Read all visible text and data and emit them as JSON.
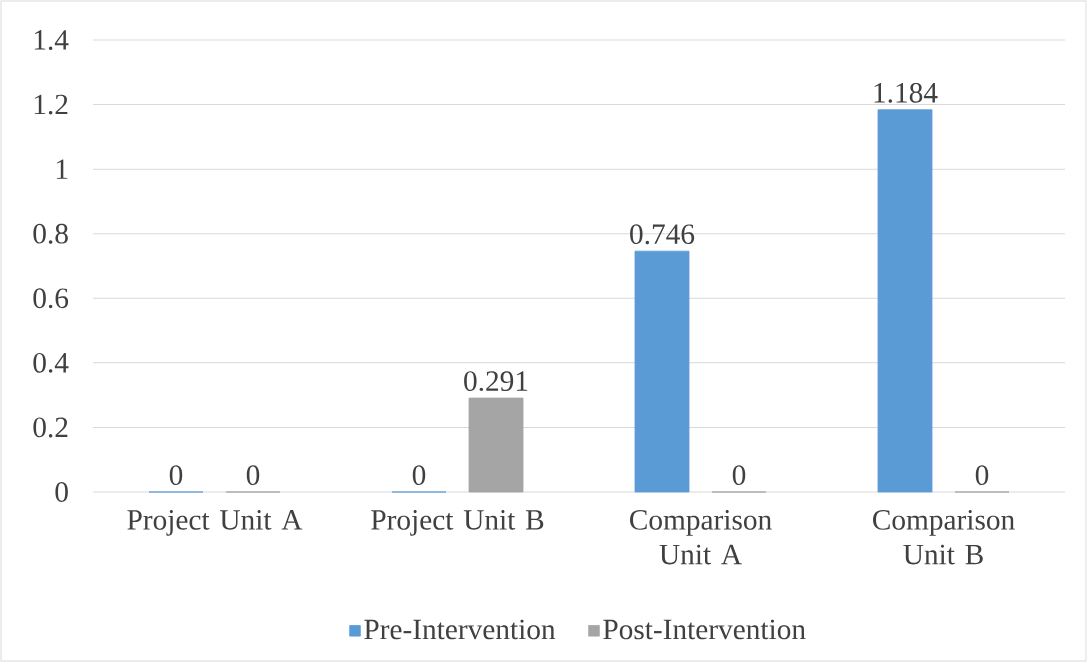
{
  "chart_data": {
    "type": "bar",
    "categories": [
      "Project Unit A",
      "Project Unit B",
      "Comparison Unit A",
      "Comparison Unit B"
    ],
    "series": [
      {
        "name": "Pre-Intervention",
        "color": "#5b9bd5",
        "values": [
          0,
          0,
          0.746,
          1.184
        ]
      },
      {
        "name": "Post-Intervention",
        "color": "#a5a5a5",
        "values": [
          0,
          0.291,
          0,
          0
        ]
      }
    ],
    "ylim": [
      0,
      1.4
    ],
    "yticks": [
      0,
      0.2,
      0.4,
      0.6,
      0.8,
      1,
      1.2,
      1.4
    ],
    "grid": "y",
    "legend": "bottom",
    "data_labels": true
  }
}
